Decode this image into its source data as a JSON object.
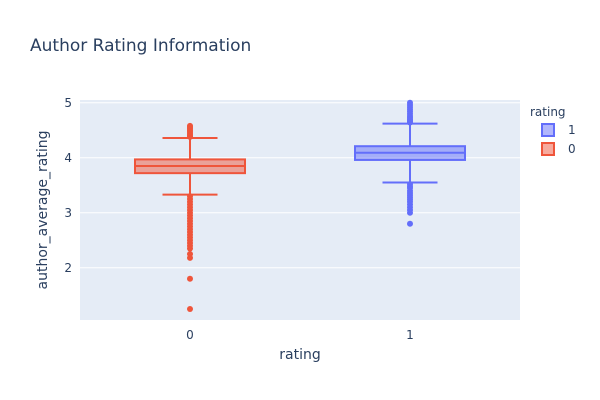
{
  "chart_data": {
    "type": "box",
    "title": "Author Rating Information",
    "xlabel": "rating",
    "ylabel": "author_average_rating",
    "categories": [
      "0",
      "1"
    ],
    "ylim": [
      1.05,
      5.05
    ],
    "yticks": [
      2,
      3,
      4,
      5
    ],
    "legend": {
      "title": "rating",
      "placement": "right",
      "order": [
        "1",
        "0"
      ]
    },
    "grid": true,
    "series": [
      {
        "name": "0",
        "category": "0",
        "color": "#EF553B",
        "fill": "rgba(239,85,59,0.5)",
        "q1": 3.72,
        "median": 3.85,
        "q3": 3.97,
        "lowerfence": 3.33,
        "upperfence": 4.36,
        "outliers": [
          4.38,
          4.4,
          4.42,
          4.45,
          4.48,
          4.5,
          4.53,
          4.56,
          4.58,
          3.3,
          3.25,
          3.2,
          3.15,
          3.1,
          3.05,
          3.0,
          2.95,
          2.9,
          2.85,
          2.8,
          2.75,
          2.7,
          2.65,
          2.6,
          2.55,
          2.5,
          2.45,
          2.4,
          2.35,
          2.25,
          2.18,
          1.8,
          1.25
        ]
      },
      {
        "name": "1",
        "category": "1",
        "color": "#636EFA",
        "fill": "rgba(99,110,250,0.5)",
        "q1": 3.96,
        "median": 4.09,
        "q3": 4.21,
        "lowerfence": 3.55,
        "upperfence": 4.62,
        "outliers": [
          4.64,
          4.66,
          4.68,
          4.7,
          4.73,
          4.76,
          4.8,
          4.84,
          4.88,
          4.92,
          4.96,
          5.0,
          3.52,
          3.48,
          3.45,
          3.4,
          3.36,
          3.32,
          3.28,
          3.24,
          3.2,
          3.15,
          3.1,
          3.05,
          3.0,
          2.8
        ]
      }
    ]
  }
}
